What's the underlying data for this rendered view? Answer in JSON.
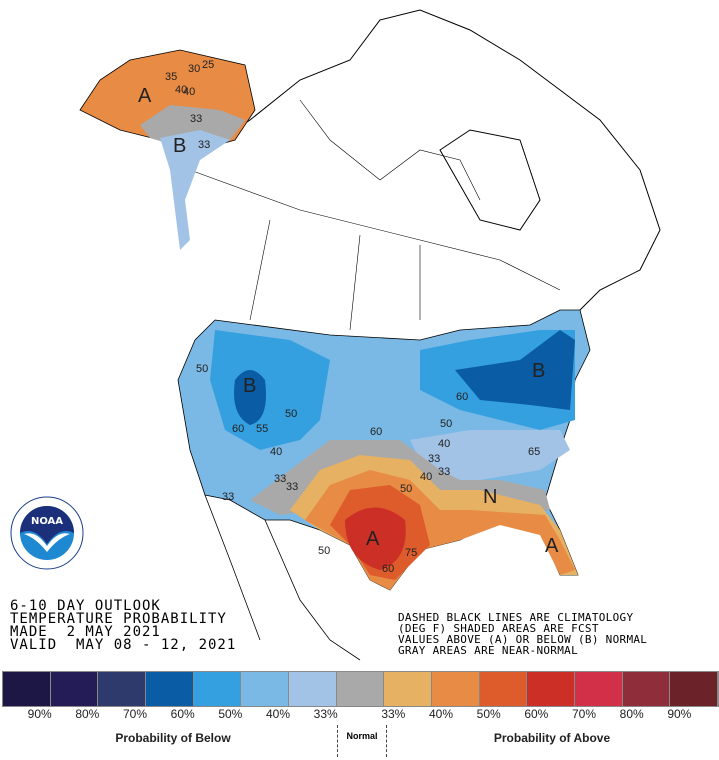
{
  "map": {
    "labels": [
      {
        "text": "A",
        "region": "alaska-west"
      },
      {
        "text": "B",
        "region": "alaska-panhandle"
      },
      {
        "text": "B",
        "region": "great-basin"
      },
      {
        "text": "B",
        "region": "northeast"
      },
      {
        "text": "A",
        "region": "texas"
      },
      {
        "text": "A",
        "region": "florida"
      },
      {
        "text": "N",
        "region": "southeast"
      }
    ],
    "contours": [
      "40",
      "35",
      "30",
      "25",
      "40",
      "33",
      "33",
      "50",
      "60",
      "55",
      "50",
      "40",
      "33",
      "33",
      "60",
      "50",
      "40",
      "33",
      "50",
      "40",
      "65",
      "60",
      "50",
      "60",
      "75",
      "33",
      "33"
    ],
    "colors": {
      "land": "#ffffff",
      "outline": "#000000"
    }
  },
  "logo": {
    "text": "NOAA",
    "ring_text": "NATIONAL OCEANIC AND ATMOSPHERIC ADMINISTRATION U.S. DEPARTMENT OF COMMERCE"
  },
  "title": {
    "line1": "6-10 DAY OUTLOOK",
    "line2": "TEMPERATURE PROBABILITY",
    "line3": "MADE  2 MAY 2021",
    "line4": "VALID  MAY 08 - 12, 2021"
  },
  "notes": {
    "line1": "DASHED BLACK LINES ARE CLIMATOLOGY",
    "line2": "(DEG F) SHADED AREAS ARE FCST",
    "line3": "VALUES ABOVE (A) OR BELOW (B) NORMAL",
    "line4": "GRAY AREAS ARE NEAR-NORMAL"
  },
  "legend": {
    "colors": [
      "#1d1746",
      "#241c57",
      "#2e3a6b",
      "#0a5ca5",
      "#35a0df",
      "#7ab9e5",
      "#a3c3e6",
      "#a9a9a9",
      "#e6b163",
      "#e88b45",
      "#de5b2c",
      "#cb2f26",
      "#d22f49",
      "#8f2d3a",
      "#6b2228"
    ],
    "ticks": [
      "90%",
      "80%",
      "70%",
      "60%",
      "50%",
      "40%",
      "33%",
      "33%",
      "40%",
      "50%",
      "60%",
      "70%",
      "80%",
      "90%"
    ],
    "below_label": "Probability of Below",
    "normal_label": "Normal",
    "above_label": "Probability of Above"
  }
}
